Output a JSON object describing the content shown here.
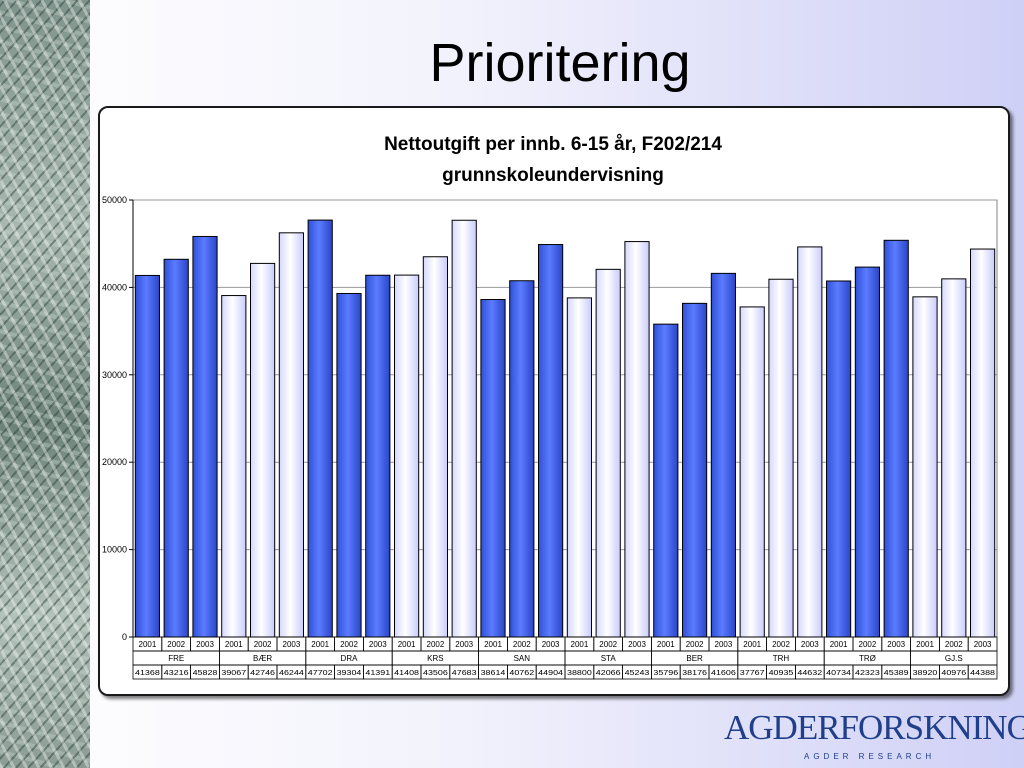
{
  "slide": {
    "title": "Prioritering"
  },
  "logo": {
    "name": "AGDERFORSKNING",
    "subtitle": "AGDER RESEARCH"
  },
  "chart_data": {
    "type": "bar",
    "title": "Nettoutgift per innb. 6-15 år, F202/214 grunnskoleundervisning",
    "title_lines": [
      "Nettoutgift per innb. 6-15 år, F202/214",
      "grunnskoleundervisning"
    ],
    "xlabel": "",
    "ylabel": "",
    "ylim": [
      0,
      50000
    ],
    "yticks": [
      0,
      10000,
      20000,
      30000,
      40000,
      50000
    ],
    "grid": true,
    "legend": "none",
    "years": [
      "2001",
      "2002",
      "2003"
    ],
    "groups": [
      {
        "name": "FRE",
        "values": [
          41368,
          43216,
          45828
        ],
        "style": "dark"
      },
      {
        "name": "BÆR",
        "values": [
          39067,
          42746,
          46244
        ],
        "style": "light"
      },
      {
        "name": "DRA",
        "values": [
          47702,
          39304,
          41391
        ],
        "style": "dark"
      },
      {
        "name": "KRS",
        "values": [
          41408,
          43506,
          47683
        ],
        "style": "light"
      },
      {
        "name": "SAN",
        "values": [
          38614,
          40762,
          44904
        ],
        "style": "dark"
      },
      {
        "name": "STA",
        "values": [
          38800,
          42066,
          45243
        ],
        "style": "light"
      },
      {
        "name": "BER",
        "values": [
          35796,
          38176,
          41606
        ],
        "style": "dark"
      },
      {
        "name": "TRH",
        "values": [
          37767,
          40935,
          44632
        ],
        "style": "light"
      },
      {
        "name": "TRØ",
        "values": [
          40734,
          42323,
          45389
        ],
        "style": "dark"
      },
      {
        "name": "GJ.S",
        "values": [
          38920,
          40976,
          44388
        ],
        "style": "light"
      }
    ],
    "colors": {
      "dark": "#3c5ee6",
      "light": "#e9eaff"
    }
  }
}
